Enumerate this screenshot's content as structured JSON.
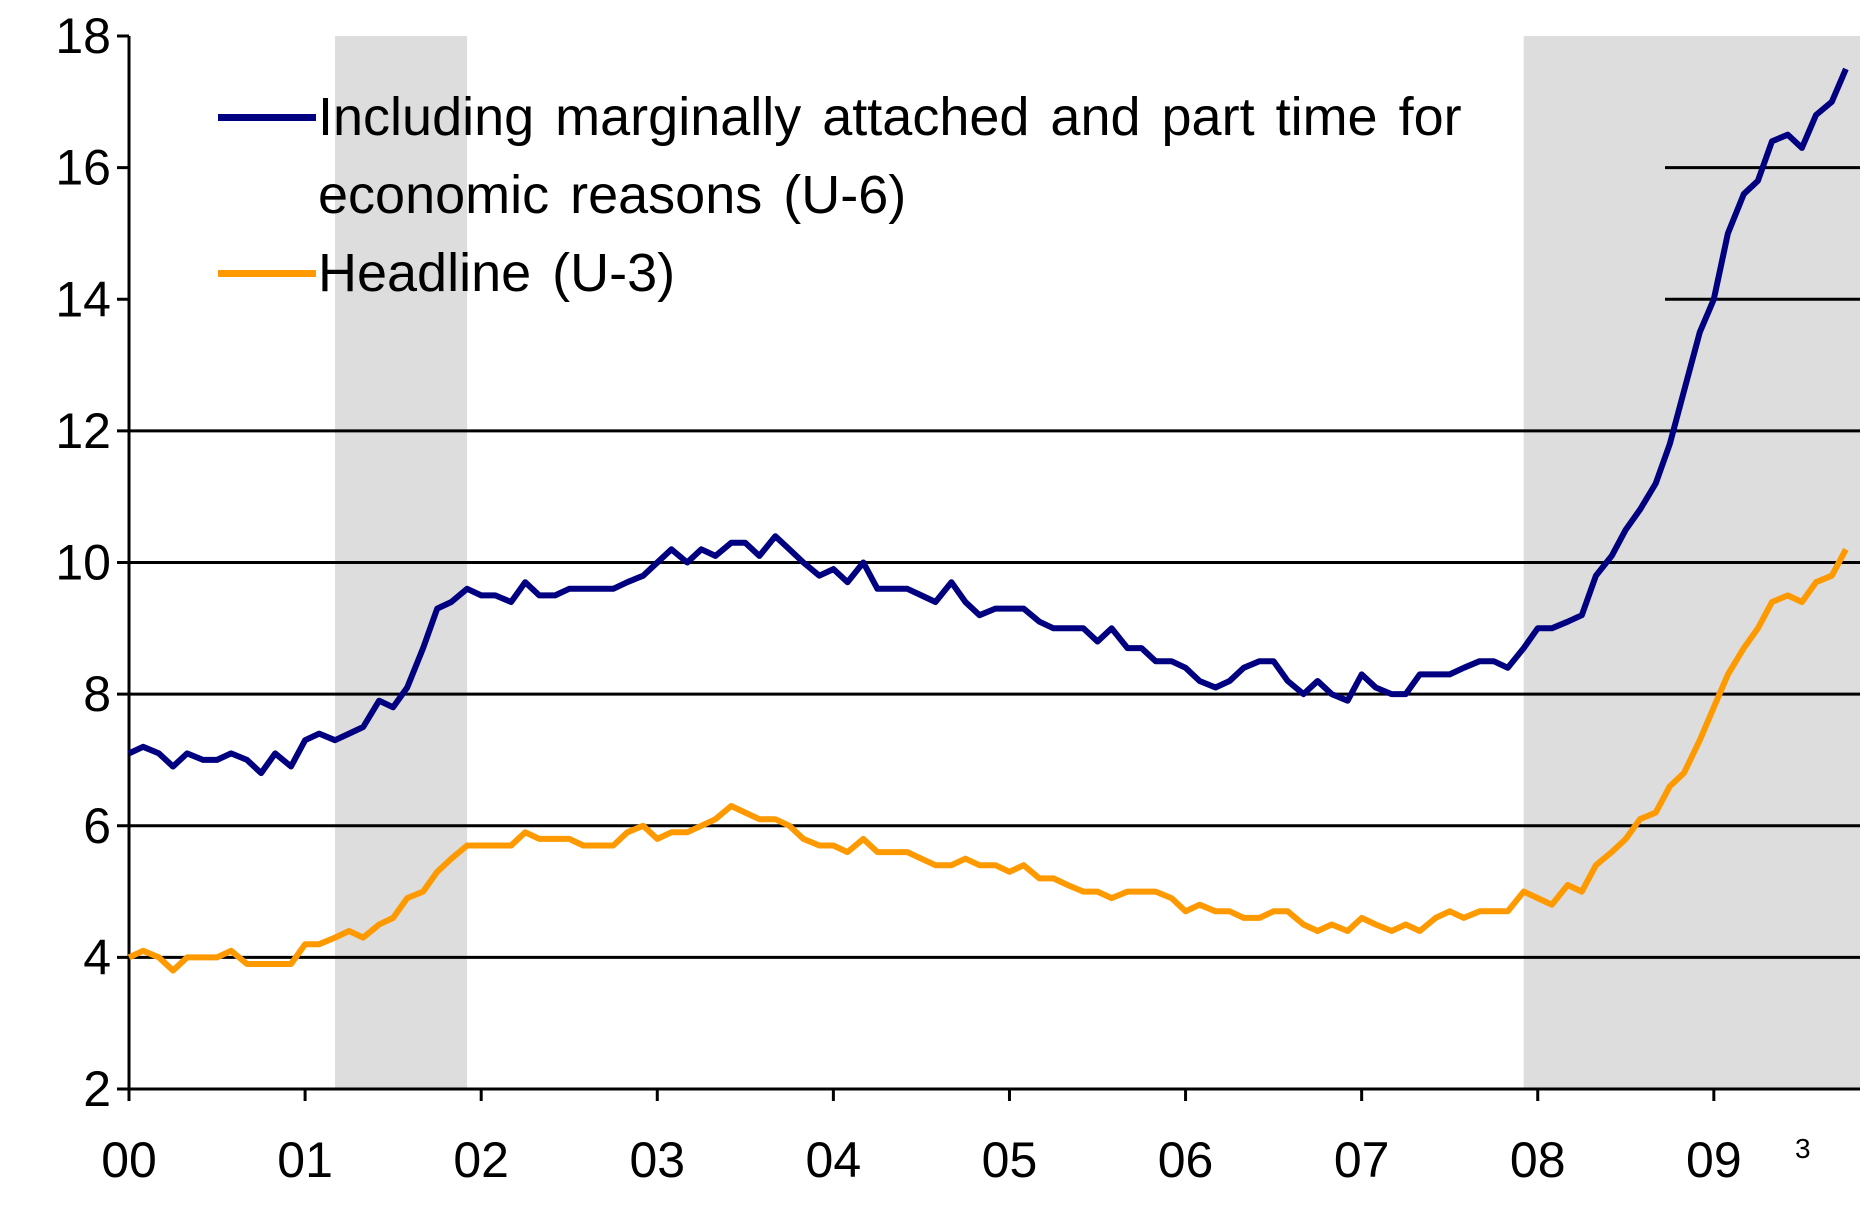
{
  "chart_data": {
    "type": "line",
    "x": [
      0,
      0.08,
      0.17,
      0.25,
      0.33,
      0.42,
      0.5,
      0.58,
      0.67,
      0.75,
      0.83,
      0.92,
      1,
      1.08,
      1.17,
      1.25,
      1.33,
      1.42,
      1.5,
      1.58,
      1.67,
      1.75,
      1.83,
      1.92,
      2,
      2.08,
      2.17,
      2.25,
      2.33,
      2.42,
      2.5,
      2.58,
      2.67,
      2.75,
      2.83,
      2.92,
      3,
      3.08,
      3.17,
      3.25,
      3.33,
      3.42,
      3.5,
      3.58,
      3.67,
      3.75,
      3.83,
      3.92,
      4,
      4.08,
      4.17,
      4.25,
      4.33,
      4.42,
      4.5,
      4.58,
      4.67,
      4.75,
      4.83,
      4.92,
      5,
      5.08,
      5.17,
      5.25,
      5.33,
      5.42,
      5.5,
      5.58,
      5.67,
      5.75,
      5.83,
      5.92,
      6,
      6.08,
      6.17,
      6.25,
      6.33,
      6.42,
      6.5,
      6.58,
      6.67,
      6.75,
      6.83,
      6.92,
      7,
      7.08,
      7.17,
      7.25,
      7.33,
      7.42,
      7.5,
      7.58,
      7.67,
      7.75,
      7.83,
      7.92,
      8,
      8.08,
      8.17,
      8.25,
      8.33,
      8.42,
      8.5,
      8.58,
      8.67,
      8.75,
      8.83,
      8.92,
      9,
      9.08,
      9.17,
      9.25,
      9.33,
      9.42,
      9.5,
      9.58,
      9.67,
      9.75
    ],
    "series": [
      {
        "name": "Including marginally attached and part time for economic reasons (U-6)",
        "color": "#000080",
        "values": [
          7.1,
          7.2,
          7.1,
          6.9,
          7.1,
          7.0,
          7.0,
          7.1,
          7.0,
          6.8,
          7.1,
          6.9,
          7.3,
          7.4,
          7.3,
          7.4,
          7.5,
          7.9,
          7.8,
          8.1,
          8.7,
          9.3,
          9.4,
          9.6,
          9.5,
          9.5,
          9.4,
          9.7,
          9.5,
          9.5,
          9.6,
          9.6,
          9.6,
          9.6,
          9.7,
          9.8,
          10.0,
          10.2,
          10.0,
          10.2,
          10.1,
          10.3,
          10.3,
          10.1,
          10.4,
          10.2,
          10.0,
          9.8,
          9.9,
          9.7,
          10.0,
          9.6,
          9.6,
          9.6,
          9.5,
          9.4,
          9.7,
          9.4,
          9.2,
          9.3,
          9.3,
          9.3,
          9.1,
          9.0,
          9.0,
          9.0,
          8.8,
          9.0,
          8.7,
          8.7,
          8.5,
          8.5,
          8.4,
          8.2,
          8.1,
          8.2,
          8.4,
          8.5,
          8.5,
          8.2,
          8.0,
          8.2,
          8.0,
          7.9,
          8.3,
          8.1,
          8.0,
          8.0,
          8.3,
          8.3,
          8.3,
          8.4,
          8.5,
          8.5,
          8.4,
          8.7,
          9.0,
          9.0,
          9.1,
          9.2,
          9.8,
          10.1,
          10.5,
          10.8,
          11.2,
          11.8,
          12.6,
          13.5,
          14.0,
          15.0,
          15.6,
          15.8,
          16.4,
          16.5,
          16.3,
          16.8,
          17.0,
          17.5
        ]
      },
      {
        "name": "Headline (U-3)",
        "color": "#ff9900",
        "values": [
          4.0,
          4.1,
          4.0,
          3.8,
          4.0,
          4.0,
          4.0,
          4.1,
          3.9,
          3.9,
          3.9,
          3.9,
          4.2,
          4.2,
          4.3,
          4.4,
          4.3,
          4.5,
          4.6,
          4.9,
          5.0,
          5.3,
          5.5,
          5.7,
          5.7,
          5.7,
          5.7,
          5.9,
          5.8,
          5.8,
          5.8,
          5.7,
          5.7,
          5.7,
          5.9,
          6.0,
          5.8,
          5.9,
          5.9,
          6.0,
          6.1,
          6.3,
          6.2,
          6.1,
          6.1,
          6.0,
          5.8,
          5.7,
          5.7,
          5.6,
          5.8,
          5.6,
          5.6,
          5.6,
          5.5,
          5.4,
          5.4,
          5.5,
          5.4,
          5.4,
          5.3,
          5.4,
          5.2,
          5.2,
          5.1,
          5.0,
          5.0,
          4.9,
          5.0,
          5.0,
          5.0,
          4.9,
          4.7,
          4.8,
          4.7,
          4.7,
          4.6,
          4.6,
          4.7,
          4.7,
          4.5,
          4.4,
          4.5,
          4.4,
          4.6,
          4.5,
          4.4,
          4.5,
          4.4,
          4.6,
          4.7,
          4.6,
          4.7,
          4.7,
          4.7,
          5.0,
          4.9,
          4.8,
          5.1,
          5.0,
          5.4,
          5.6,
          5.8,
          6.1,
          6.2,
          6.6,
          6.8,
          7.3,
          7.8,
          8.3,
          8.7,
          9.0,
          9.4,
          9.5,
          9.4,
          9.7,
          9.8,
          10.2
        ]
      }
    ],
    "shaded_regions": [
      [
        1.17,
        1.92
      ],
      [
        7.92,
        9.83
      ]
    ],
    "shade_color": "#dddddd",
    "xlim": [
      0,
      9.83
    ],
    "xticks": [
      {
        "value": 0,
        "label": "00"
      },
      {
        "value": 1,
        "label": "01"
      },
      {
        "value": 2,
        "label": "02"
      },
      {
        "value": 3,
        "label": "03"
      },
      {
        "value": 4,
        "label": "04"
      },
      {
        "value": 5,
        "label": "05"
      },
      {
        "value": 6,
        "label": "06"
      },
      {
        "value": 7,
        "label": "07"
      },
      {
        "value": 8,
        "label": "08"
      },
      {
        "value": 9,
        "label": "09"
      }
    ],
    "ylim": [
      2,
      18
    ],
    "yticks": [
      2,
      4,
      6,
      8,
      10,
      12,
      14,
      16,
      18
    ],
    "grid": true,
    "annotation": "3"
  }
}
